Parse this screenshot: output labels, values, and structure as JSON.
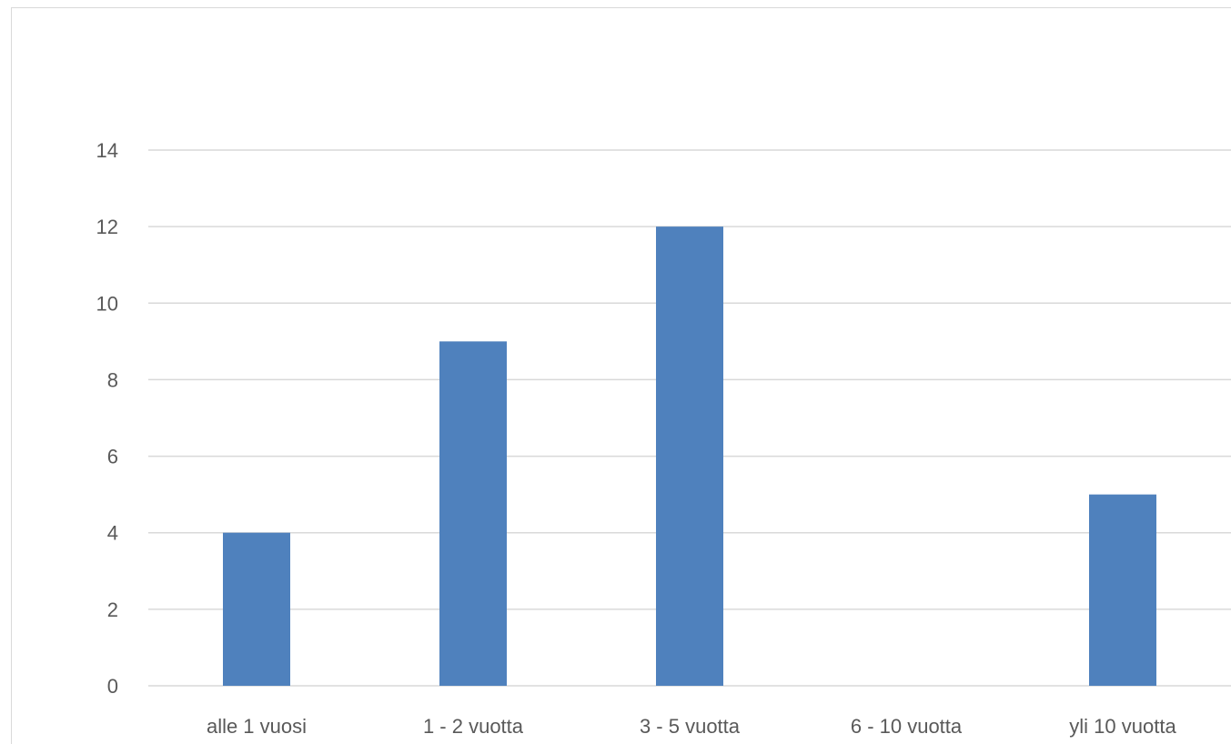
{
  "chart_data": {
    "type": "bar",
    "categories": [
      "alle 1 vuosi",
      "1 - 2 vuotta",
      "3 - 5 vuotta",
      "6 - 10 vuotta",
      "yli 10 vuotta"
    ],
    "values": [
      4,
      9,
      12,
      0,
      5
    ],
    "title": "",
    "xlabel": "",
    "ylabel": "",
    "ylim": [
      0,
      14
    ],
    "yticks": [
      0,
      2,
      4,
      6,
      8,
      10,
      12,
      14
    ],
    "grid": true,
    "legend": "none",
    "colors": {
      "bar": "#4f81bd",
      "grid": "#d9d9d9",
      "text": "#595959"
    }
  }
}
